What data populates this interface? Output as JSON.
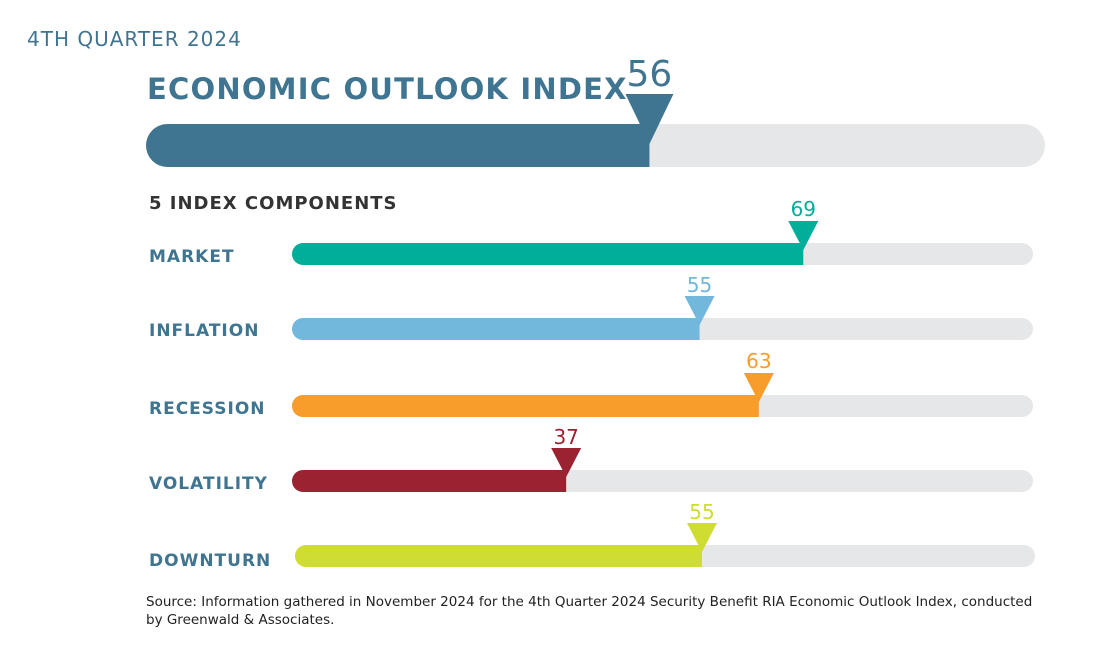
{
  "header": {
    "quarter": "4TH QUARTER 2024",
    "title": "ECONOMIC OUTLOOK INDEX",
    "components_title": "5 INDEX COMPONENTS"
  },
  "colors": {
    "track": "#e6e7e8",
    "main": "#3f7590",
    "label": "#3f7590"
  },
  "chart_data": {
    "type": "bar",
    "scale": [
      0,
      100
    ],
    "main": {
      "name": "ECONOMIC OUTLOOK INDEX",
      "value": 56,
      "color": "#3f7590"
    },
    "components": [
      {
        "name": "MARKET",
        "value": 69,
        "color": "#00ae9a"
      },
      {
        "name": "INFLATION",
        "value": 55,
        "color": "#72b7dc"
      },
      {
        "name": "RECESSION",
        "value": 63,
        "color": "#f89c2c"
      },
      {
        "name": "VOLATILITY",
        "value": 37,
        "color": "#9b2231"
      },
      {
        "name": "DOWNTURN",
        "value": 55,
        "color": "#cfdc32"
      }
    ]
  },
  "footer": {
    "source": "Source: Information gathered in November 2024 for the 4th Quarter 2024 Security Benefit RIA Economic Outlook Index, conducted by Greenwald & Associates."
  }
}
